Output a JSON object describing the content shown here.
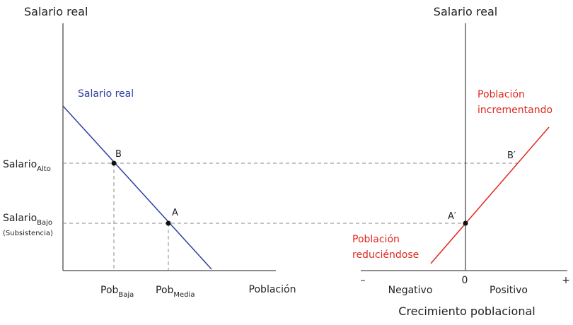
{
  "left_chart": {
    "y_axis_title": "Salario real",
    "x_axis_title": "Población",
    "curve_label": "Salario real",
    "y_ticks": {
      "high": {
        "main": "Salario",
        "sub": "Alto"
      },
      "low": {
        "main": "Salario",
        "sub": "Bajo",
        "note": "(Subsistencia)"
      }
    },
    "x_ticks": {
      "low": {
        "main": "Pob",
        "sub": "Baja"
      },
      "mid": {
        "main": "Pob",
        "sub": "Media"
      }
    },
    "points": {
      "B": "B",
      "A": "A"
    }
  },
  "right_chart": {
    "y_axis_title": "Salario real",
    "x_axis_title": "Crecimiento poblacional",
    "zero_label": "0",
    "minus_label": "–",
    "plus_label": "+",
    "negative_label": "Negativo",
    "positive_label": "Positivo",
    "upper_label": [
      "Población",
      "incrementando"
    ],
    "lower_label": [
      "Población",
      "reduciéndose"
    ],
    "points": {
      "B": "B′",
      "A": "A′"
    }
  },
  "colors": {
    "wage_curve": "#2d3fa0",
    "growth_curve": "#e0281e",
    "axes": "#555555",
    "guides": "#888888"
  }
}
